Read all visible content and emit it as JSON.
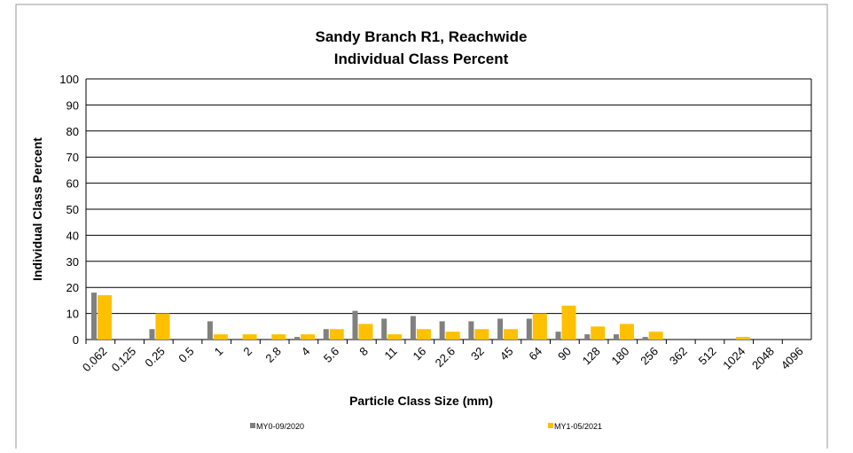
{
  "chart_data": {
    "type": "bar",
    "title": "Sandy Branch R1, Reachwide",
    "subtitle": "Individual Class Percent",
    "x_label": "Particle Class Size (mm)",
    "y_label": "Individual Class Percent",
    "categories": [
      "0.062",
      "0.125",
      "0.25",
      "0.5",
      "1",
      "2",
      "2.8",
      "4",
      "5.6",
      "8",
      "11",
      "16",
      "22.6",
      "32",
      "45",
      "64",
      "90",
      "128",
      "180",
      "256",
      "362",
      "512",
      "1024",
      "2048",
      "4096"
    ],
    "series": [
      {
        "name": "MY0-09/2020",
        "color": "#808080",
        "values": [
          18,
          0,
          4,
          0,
          7,
          0,
          0,
          1,
          4,
          11,
          8,
          9,
          7,
          7,
          8,
          8,
          3,
          2,
          2,
          1,
          0,
          0,
          0,
          0,
          0
        ]
      },
      {
        "name": "MY1-05/2021",
        "color": "#ffc000",
        "values": [
          17,
          0,
          10,
          0,
          2,
          2,
          2,
          2,
          4,
          6,
          2,
          4,
          3,
          4,
          4,
          10,
          13,
          5,
          6,
          3,
          0,
          0,
          1,
          0,
          0
        ]
      }
    ],
    "ylim": [
      0,
      100
    ],
    "yticks": [
      0,
      10,
      20,
      30,
      40,
      50,
      60,
      70,
      80,
      90,
      100
    ],
    "grid": true,
    "legend": "bottom"
  }
}
